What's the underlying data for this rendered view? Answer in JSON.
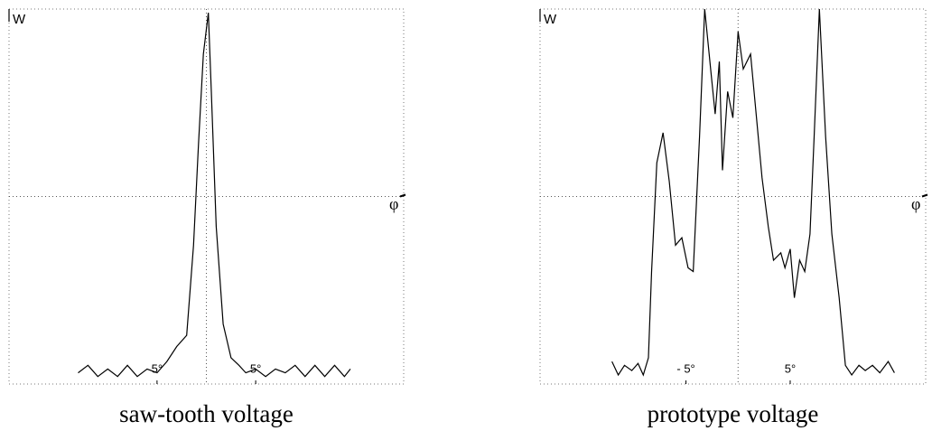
{
  "chart_data": [
    {
      "type": "line",
      "title": "saw-tooth voltage",
      "x_label": "φ",
      "y_label": "W",
      "color": "#000000",
      "xlim": [
        -20,
        20
      ],
      "ylim": [
        0,
        100
      ],
      "xticks": [
        {
          "value": -5,
          "label": "5°"
        },
        {
          "value": 5,
          "label": "5°"
        }
      ],
      "x": [
        -13,
        -12,
        -11,
        -10,
        -9,
        -8,
        -7,
        -6,
        -5,
        -4,
        -3,
        -2,
        -1.3,
        -0.8,
        -0.3,
        0.2,
        0.5,
        1,
        1.7,
        2.5,
        3.3,
        4,
        5,
        6,
        7,
        8,
        9,
        10,
        11,
        12,
        13,
        14,
        14.6
      ],
      "values": [
        3,
        5,
        2,
        4,
        2,
        5,
        2,
        4,
        3,
        6,
        10,
        13,
        37,
        64,
        88,
        99,
        78,
        42,
        16,
        7,
        5,
        3,
        4,
        2,
        4,
        3,
        5,
        2,
        5,
        2,
        5,
        2,
        4
      ]
    },
    {
      "type": "line",
      "title": "prototype voltage",
      "x_label": "φ",
      "y_label": "W",
      "color": "#000000",
      "xlim": [
        -19,
        18
      ],
      "ylim": [
        0,
        100
      ],
      "xticks": [
        {
          "value": -5,
          "label": "- 5°"
        },
        {
          "value": 5,
          "label": "5°"
        }
      ],
      "x": [
        -12.1,
        -11.5,
        -10.9,
        -10.2,
        -9.6,
        -9.1,
        -8.6,
        -8.3,
        -7.8,
        -7.2,
        -6.6,
        -6.0,
        -5.4,
        -4.8,
        -4.3,
        -3.7,
        -3.2,
        -2.6,
        -2.2,
        -1.8,
        -1.5,
        -1.0,
        -0.5,
        0,
        0.5,
        1.2,
        1.7,
        2.3,
        2.9,
        3.4,
        4.1,
        4.5,
        5.0,
        5.4,
        5.9,
        6.4,
        6.9,
        7.3,
        7.8,
        8.4,
        9.0,
        9.7,
        10.3,
        10.9,
        11.6,
        12.2,
        12.9,
        13.6,
        14.4,
        15.0
      ],
      "values": [
        6,
        2.4,
        5,
        3.6,
        5.5,
        2.4,
        7,
        30,
        59,
        67,
        54,
        37,
        39,
        31,
        30,
        66,
        100,
        83,
        72,
        86,
        57,
        78,
        71,
        94,
        84,
        88,
        73,
        55,
        42,
        33,
        35,
        31,
        36,
        23,
        33,
        30,
        40,
        66,
        100,
        66,
        40,
        23,
        5,
        2.4,
        5,
        3.6,
        5,
        3,
        6,
        3
      ]
    }
  ]
}
